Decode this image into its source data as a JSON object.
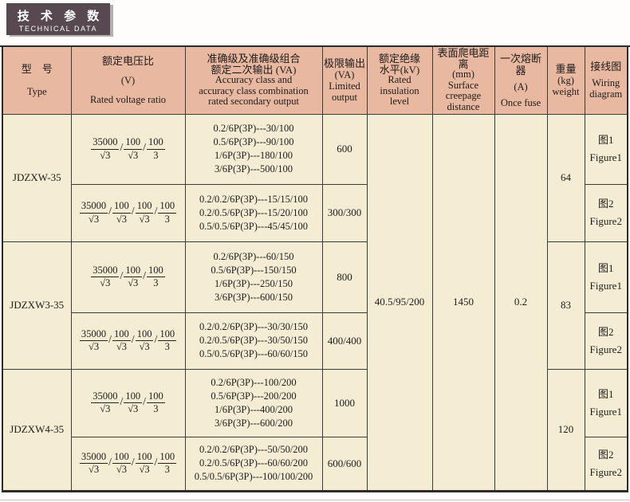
{
  "header": {
    "title_cn": "技 术 参 数",
    "title_en": "TECHNICAL DATA"
  },
  "table": {
    "headers": {
      "type": {
        "cn": "型　号",
        "en": "Type"
      },
      "ratio": {
        "cn": "额定电压比",
        "unit": "(V)",
        "en": "Rated voltage ratio"
      },
      "accuracy": {
        "cn1": "准确级及准确级组合",
        "cn2": "额定二次输出 (VA)",
        "en1": "Accuracy class and",
        "en2": "accuracy class combination",
        "en3": "rated secondary output"
      },
      "limited": {
        "cn": "极限输出",
        "unit": "(VA)",
        "en1": "Limited",
        "en2": "output"
      },
      "insulation": {
        "cn1": "额定绝缘",
        "cn2": "水平(kV)",
        "en1": "Rated",
        "en2": "insulation",
        "en3": "level"
      },
      "creepage": {
        "cn": "表面爬电距离",
        "unit": "(mm)",
        "en1": "Surface",
        "en2": "creepage",
        "en3": "distance"
      },
      "fuse": {
        "cn": "一次熔断器",
        "unit": "(A)",
        "en": "Once fuse"
      },
      "weight": {
        "cn": "重量",
        "unit": "(kg)",
        "en": "weight"
      },
      "wiring": {
        "cn": "接线图",
        "en1": "Wiring",
        "en2": "diagram"
      }
    },
    "shared": {
      "insulation_level": "40.5/95/200",
      "creepage_distance": "1450",
      "fuse_current": "0.2"
    },
    "groups": [
      {
        "type": "JDZXW-35",
        "weight": "64",
        "rows": [
          {
            "ratio": [
              {
                "n": "35000",
                "d": "√3"
              },
              {
                "n": "100",
                "d": "√3"
              },
              {
                "n": "100",
                "d": "3"
              }
            ],
            "accuracy": [
              "0.2/6P(3P)---30/100",
              "0.5/6P(3P)---90/100",
              "1/6P(3P)---180/100",
              "3/6P(3P)---500/100"
            ],
            "limited": "600",
            "wiring_cn": "图1",
            "wiring_en": "Figure1"
          },
          {
            "ratio": [
              {
                "n": "35000",
                "d": "√3"
              },
              {
                "n": "100",
                "d": "√3"
              },
              {
                "n": "100",
                "d": "√3"
              },
              {
                "n": "100",
                "d": "3"
              }
            ],
            "accuracy": [
              "0.2/0.2/6P(3P)---15/15/100",
              "0.2/0.5/6P(3P)---15/20/100",
              "0.5/0.5/6P(3P)---45/45/100"
            ],
            "limited": "300/300",
            "wiring_cn": "图2",
            "wiring_en": "Figure2"
          }
        ]
      },
      {
        "type": "JDZXW3-35",
        "weight": "83",
        "rows": [
          {
            "ratio": [
              {
                "n": "35000",
                "d": "√3"
              },
              {
                "n": "100",
                "d": "√3"
              },
              {
                "n": "100",
                "d": "3"
              }
            ],
            "accuracy": [
              "0.2/6P(3P)---60/150",
              "0.5/6P(3P)---150/150",
              "1/6P(3P)---250/150",
              "3/6P(3P)---600/150"
            ],
            "limited": "800",
            "wiring_cn": "图1",
            "wiring_en": "Figure1"
          },
          {
            "ratio": [
              {
                "n": "35000",
                "d": "√3"
              },
              {
                "n": "100",
                "d": "√3"
              },
              {
                "n": "100",
                "d": "√3"
              },
              {
                "n": "100",
                "d": "3"
              }
            ],
            "accuracy": [
              "0.2/0.2/6P(3P)---30/30/150",
              "0.2/0.5/6P(3P)---30/50/150",
              "0.5/0.5/6P(3P)---60/60/150"
            ],
            "limited": "400/400",
            "wiring_cn": "图2",
            "wiring_en": "Figure2"
          }
        ]
      },
      {
        "type": "JDZXW4-35",
        "weight": "120",
        "rows": [
          {
            "ratio": [
              {
                "n": "35000",
                "d": "√3"
              },
              {
                "n": "100",
                "d": "√3"
              },
              {
                "n": "100",
                "d": "3"
              }
            ],
            "accuracy": [
              "0.2/6P(3P)---100/200",
              "0.5/6P(3P)---200/200",
              "1/6P(3P)---400/200",
              "3/6P(3P)---600/200"
            ],
            "limited": "1000",
            "wiring_cn": "图1",
            "wiring_en": "Figure1"
          },
          {
            "ratio": [
              {
                "n": "35000",
                "d": "√3"
              },
              {
                "n": "100",
                "d": "√3"
              },
              {
                "n": "100",
                "d": "√3"
              },
              {
                "n": "100",
                "d": "3"
              }
            ],
            "accuracy": [
              "0.2/0.2/6P(3P)---50/50/200",
              "0.2/0.5/6P(3P)---60/60/200",
              "0.5/0.5/6P(3P)---100/100/200"
            ],
            "limited": "600/600",
            "wiring_cn": "图2",
            "wiring_en": "Figure2"
          }
        ]
      }
    ]
  }
}
